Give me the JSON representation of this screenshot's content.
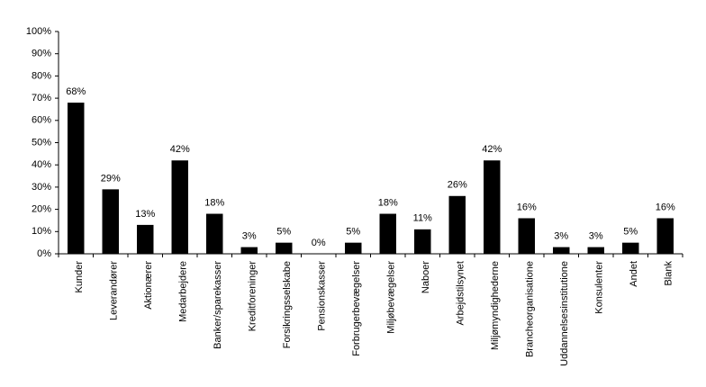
{
  "chart_data": {
    "type": "bar",
    "categories": [
      "Kunder",
      "Leverandører",
      "Aktionærer",
      "Medarbejdere",
      "Banker/sparekasser",
      "Kreditforeninger",
      "Forsikringsselskabe",
      "Pensionskasser",
      "Forbrugerbevægelser",
      "Miljøbevægelser",
      "Naboer",
      "Arbejdstilsynet",
      "Miljømyndighederne",
      "Brancheorganisatione",
      "Uddannelsesinstitutione",
      "Konsulenter",
      "Andet",
      "Blank"
    ],
    "values": [
      68,
      29,
      13,
      42,
      18,
      3,
      5,
      0,
      5,
      18,
      11,
      26,
      42,
      16,
      3,
      3,
      5,
      16
    ],
    "value_labels": [
      "68%",
      "29%",
      "13%",
      "42%",
      "18%",
      "3%",
      "5%",
      "0%",
      "5%",
      "18%",
      "11%",
      "26%",
      "42%",
      "16%",
      "3%",
      "3%",
      "5%",
      "16%"
    ],
    "color": "#000000",
    "ylim": [
      0,
      100
    ],
    "yticks": [
      {
        "value": 0,
        "label": "0%"
      },
      {
        "value": 10,
        "label": "10%"
      },
      {
        "value": 20,
        "label": "20%"
      },
      {
        "value": 30,
        "label": "30%"
      },
      {
        "value": 40,
        "label": "40%"
      },
      {
        "value": 50,
        "label": "50%"
      },
      {
        "value": 60,
        "label": "60%"
      },
      {
        "value": 70,
        "label": "70%"
      },
      {
        "value": 80,
        "label": "80%"
      },
      {
        "value": 90,
        "label": "90%"
      },
      {
        "value": 100,
        "label": "100%"
      }
    ],
    "grid": false
  }
}
